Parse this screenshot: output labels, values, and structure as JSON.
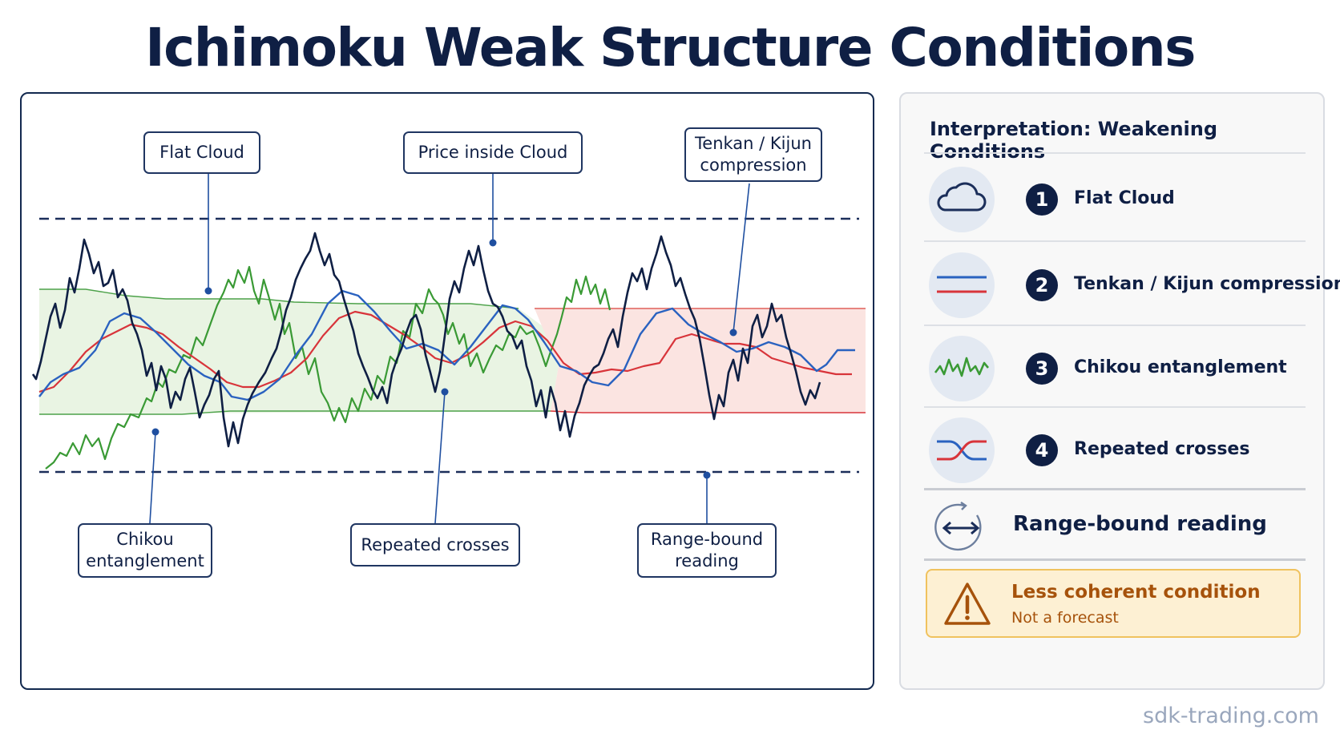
{
  "title": "Ichimoku Weak Structure Conditions",
  "chart": {
    "callouts": {
      "flat_cloud": "Flat Cloud",
      "price_inside_cloud": "Price inside Cloud",
      "tenkan_kijun_line1": "Tenkan / Kijun",
      "tenkan_kijun_line2": "compression",
      "chikou_line1": "Chikou",
      "chikou_line2": "entanglement",
      "repeated_crosses": "Repeated crosses",
      "range_line1": "Range-bound",
      "range_line2": "reading"
    },
    "colors": {
      "price": "#0f1f44",
      "tenkan": "#2a62c0",
      "kijun": "#d8343a",
      "chikou": "#3a9a35",
      "cloud_bull": "#e8f3e2",
      "cloud_bear": "#fbe4e1",
      "range_lines": "#1b2e5a"
    }
  },
  "sidebar": {
    "title": "Interpretation: Weakening Conditions",
    "items": [
      {
        "number": "1",
        "label": "Flat Cloud",
        "icon": "cloud-icon"
      },
      {
        "number": "2",
        "label": "Tenkan / Kijun compression",
        "icon": "parallel-lines-icon"
      },
      {
        "number": "3",
        "label": "Chikou entanglement",
        "icon": "wave-icon"
      },
      {
        "number": "4",
        "label": "Repeated crosses",
        "icon": "crossing-lines-icon"
      }
    ],
    "range": {
      "label": "Range-bound reading",
      "icon": "range-arrows-icon"
    },
    "warning": {
      "title": "Less coherent condition",
      "subtitle": "Not a forecast",
      "icon": "warning-icon"
    }
  },
  "watermark": "sdk-trading.com"
}
